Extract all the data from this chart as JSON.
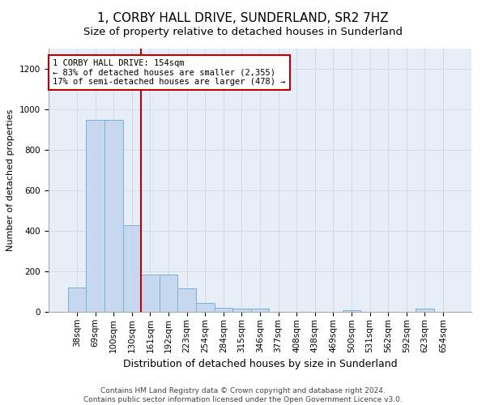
{
  "title": "1, CORBY HALL DRIVE, SUNDERLAND, SR2 7HZ",
  "subtitle": "Size of property relative to detached houses in Sunderland",
  "xlabel": "Distribution of detached houses by size in Sunderland",
  "ylabel": "Number of detached properties",
  "categories": [
    "38sqm",
    "69sqm",
    "100sqm",
    "130sqm",
    "161sqm",
    "192sqm",
    "223sqm",
    "254sqm",
    "284sqm",
    "315sqm",
    "346sqm",
    "377sqm",
    "408sqm",
    "438sqm",
    "469sqm",
    "500sqm",
    "531sqm",
    "562sqm",
    "592sqm",
    "623sqm",
    "654sqm"
  ],
  "values": [
    120,
    950,
    950,
    430,
    185,
    185,
    115,
    45,
    20,
    15,
    15,
    0,
    0,
    0,
    0,
    10,
    0,
    0,
    0,
    15,
    0
  ],
  "bar_color": "#c6d9f0",
  "bar_edge_color": "#7bafd4",
  "vline_x": 3.5,
  "vline_color": "#c00000",
  "annotation_text": "1 CORBY HALL DRIVE: 154sqm\n← 83% of detached houses are smaller (2,355)\n17% of semi-detached houses are larger (478) →",
  "annotation_box_color": "#ffffff",
  "annotation_box_edgecolor": "#c00000",
  "ylim": [
    0,
    1300
  ],
  "yticks": [
    0,
    200,
    400,
    600,
    800,
    1000,
    1200
  ],
  "background_color": "#e8eef8",
  "footer": "Contains HM Land Registry data © Crown copyright and database right 2024.\nContains public sector information licensed under the Open Government Licence v3.0.",
  "title_fontsize": 11,
  "subtitle_fontsize": 9.5,
  "xlabel_fontsize": 9,
  "ylabel_fontsize": 8,
  "tick_fontsize": 7.5,
  "annotation_fontsize": 7.5,
  "footer_fontsize": 6.5
}
